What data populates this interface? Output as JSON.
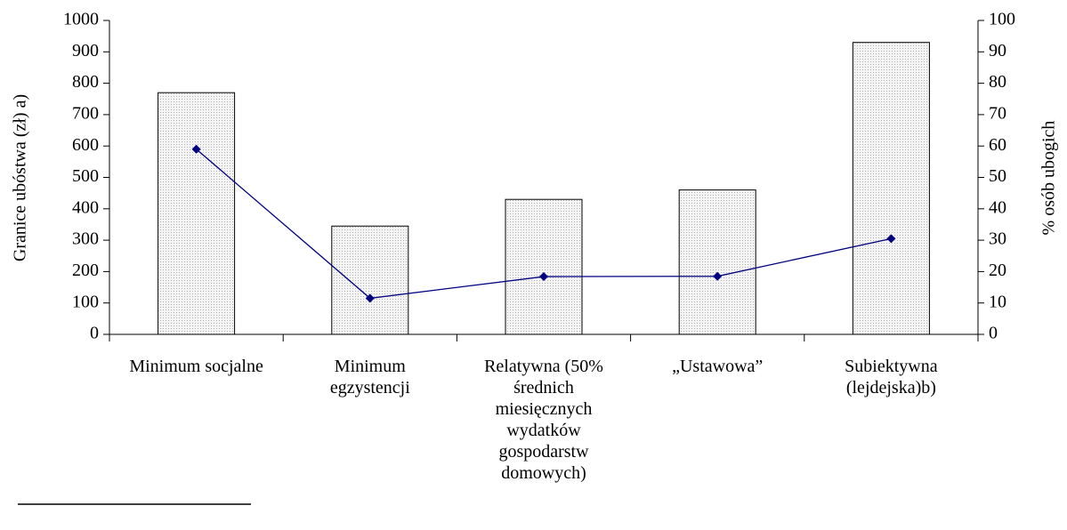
{
  "chart_data": {
    "type": "bar-line",
    "ylabel": "Granice ubóstwa (zł) a)",
    "y2label": "% osób ubogich",
    "categories": [
      "Minimum socjalne",
      "Minimum egzystencji",
      "Relatywna (50% średnich miesięcznych wydatków gospodarstw domowych)",
      "„Ustawowa”",
      "Subiektywna (lejdejska)b)"
    ],
    "series": [
      {
        "type": "bar",
        "color": "#e6e6e6",
        "values": [
          770,
          345,
          430,
          460,
          930
        ]
      },
      {
        "type": "line",
        "axis": "y2",
        "color": "#000080",
        "values": [
          59,
          11.5,
          18.4,
          18.5,
          30.5
        ]
      }
    ],
    "ylim": [
      0,
      1000
    ],
    "yticks": [
      0,
      100,
      200,
      300,
      400,
      500,
      600,
      700,
      800,
      900,
      1000
    ],
    "y2lim": [
      0,
      100
    ],
    "y2ticks": [
      0,
      10,
      20,
      30,
      40,
      50,
      60,
      70,
      80,
      90,
      100
    ]
  }
}
